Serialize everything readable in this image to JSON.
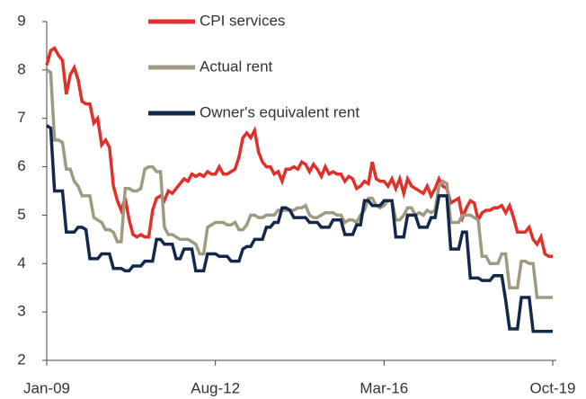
{
  "chart_data": {
    "type": "line",
    "categories": [
      "Jan-09",
      null,
      null,
      null,
      null,
      null,
      null,
      null,
      null,
      null,
      null,
      null,
      null,
      null,
      null,
      null,
      null,
      null,
      null,
      null,
      null,
      null,
      null,
      null,
      null,
      null,
      null,
      null,
      null,
      null,
      null,
      null,
      null,
      null,
      null,
      null,
      null,
      null,
      null,
      null,
      null,
      null,
      null,
      "Aug-12",
      null,
      null,
      null,
      null,
      null,
      null,
      null,
      null,
      null,
      null,
      null,
      null,
      null,
      null,
      null,
      null,
      null,
      null,
      null,
      null,
      null,
      null,
      null,
      null,
      null,
      null,
      null,
      null,
      null,
      null,
      null,
      null,
      null,
      null,
      null,
      null,
      null,
      null,
      null,
      null,
      null,
      null,
      "Mar-16",
      null,
      null,
      null,
      null,
      null,
      null,
      null,
      null,
      null,
      null,
      null,
      null,
      null,
      null,
      null,
      null,
      null,
      null,
      null,
      null,
      null,
      null,
      null,
      null,
      null,
      null,
      null,
      null,
      null,
      null,
      null,
      null,
      null,
      null,
      null,
      null,
      null,
      null,
      null,
      null,
      null,
      null,
      "Oct-19"
    ],
    "series": [
      {
        "name": "CPI services",
        "color": "#e0302a",
        "values": [
          8.1,
          8.4,
          8.45,
          8.3,
          8.2,
          7.5,
          7.9,
          8.05,
          7.8,
          7.35,
          7.3,
          7.3,
          6.9,
          7.0,
          6.45,
          6.55,
          6.4,
          5.6,
          5.3,
          5.1,
          5.35,
          4.9,
          4.6,
          4.55,
          4.6,
          4.55,
          4.55,
          5.1,
          5.35,
          5.4,
          5.3,
          5.5,
          5.45,
          5.55,
          5.65,
          5.75,
          5.7,
          5.85,
          5.8,
          5.85,
          5.8,
          5.9,
          5.85,
          5.85,
          6.0,
          5.85,
          5.85,
          5.9,
          5.95,
          6.2,
          6.6,
          6.7,
          6.6,
          6.75,
          6.3,
          6.1,
          6.0,
          6.0,
          5.85,
          5.9,
          5.7,
          5.95,
          5.95,
          6.0,
          5.95,
          6.1,
          6.05,
          5.9,
          6.05,
          5.95,
          5.8,
          6.0,
          5.85,
          5.9,
          5.85,
          5.85,
          5.7,
          5.8,
          5.75,
          5.55,
          5.6,
          5.7,
          5.65,
          6.1,
          5.75,
          5.7,
          5.7,
          5.6,
          5.75,
          5.55,
          5.75,
          5.45,
          5.75,
          5.6,
          5.55,
          5.5,
          5.45,
          5.6,
          5.4,
          5.55,
          5.75,
          5.6,
          5.55,
          5.25,
          5.3,
          5.35,
          4.95,
          5.15,
          5.3,
          5.25,
          4.9,
          5.05,
          5.1,
          5.1,
          5.15,
          5.15,
          5.2,
          5.05,
          5.2,
          4.95,
          4.65,
          4.65,
          4.65,
          4.75,
          4.5,
          4.4,
          4.55,
          4.2,
          4.15,
          4.15
        ]
      },
      {
        "name": "Actual rent",
        "color": "#a09a80",
        "values": [
          8.0,
          7.95,
          6.55,
          6.55,
          6.5,
          5.95,
          5.95,
          5.7,
          5.6,
          5.4,
          5.4,
          5.4,
          4.95,
          4.9,
          4.85,
          4.7,
          4.7,
          4.65,
          4.45,
          4.45,
          5.55,
          5.55,
          5.5,
          5.5,
          5.55,
          5.95,
          6.0,
          6.0,
          5.9,
          5.9,
          4.75,
          4.6,
          4.6,
          4.55,
          4.5,
          4.5,
          4.5,
          4.45,
          4.4,
          4.2,
          4.2,
          4.75,
          4.8,
          4.85,
          4.85,
          4.85,
          4.8,
          4.8,
          4.85,
          4.7,
          4.7,
          4.8,
          5.0,
          5.0,
          4.95,
          4.95,
          5.0,
          5.0,
          5.0,
          5.1,
          5.1,
          5.1,
          5.1,
          5.1,
          5.15,
          5.15,
          5.2,
          5.0,
          4.95,
          4.95,
          5.0,
          5.05,
          5.05,
          5.05,
          5.0,
          5.0,
          4.85,
          4.9,
          4.9,
          4.85,
          5.0,
          5.1,
          5.35,
          5.35,
          5.2,
          5.15,
          5.2,
          5.3,
          5.3,
          4.9,
          4.9,
          5.0,
          5.15,
          5.15,
          5.0,
          5.05,
          5.0,
          5.1,
          5.05,
          5.1,
          5.6,
          5.7,
          5.65,
          4.85,
          4.85,
          4.85,
          5.0,
          5.0,
          5.0,
          4.95,
          4.9,
          4.15,
          4.15,
          4.0,
          4.0,
          4.0,
          4.2,
          4.2,
          3.5,
          3.5,
          3.5,
          4.05,
          4.05,
          4.0,
          4.0,
          3.3,
          3.3,
          3.3,
          3.3,
          3.3
        ]
      },
      {
        "name": "Owner's equivalent rent",
        "color": "#13294b",
        "values": [
          6.85,
          6.8,
          5.5,
          5.5,
          5.5,
          4.65,
          4.65,
          4.65,
          4.75,
          4.75,
          4.7,
          4.1,
          4.1,
          4.1,
          4.2,
          4.2,
          4.2,
          3.9,
          3.9,
          3.9,
          3.85,
          3.85,
          3.95,
          3.95,
          3.95,
          4.05,
          4.05,
          4.05,
          4.5,
          4.5,
          4.4,
          4.4,
          4.4,
          4.1,
          4.1,
          4.3,
          4.3,
          4.3,
          3.85,
          3.85,
          3.85,
          4.2,
          4.2,
          4.2,
          4.15,
          4.15,
          4.15,
          4.05,
          4.05,
          4.05,
          4.3,
          4.35,
          4.35,
          4.5,
          4.5,
          4.5,
          4.75,
          4.75,
          4.85,
          4.85,
          5.15,
          5.15,
          5.1,
          4.95,
          4.95,
          4.95,
          4.95,
          4.85,
          4.85,
          4.85,
          4.75,
          4.75,
          4.75,
          4.9,
          4.9,
          4.9,
          4.6,
          4.6,
          4.6,
          4.8,
          4.8,
          5.3,
          5.3,
          5.2,
          5.2,
          5.2,
          5.3,
          5.3,
          5.3,
          4.55,
          4.55,
          4.55,
          5.0,
          5.0,
          5.0,
          4.75,
          4.75,
          4.75,
          4.95,
          4.95,
          5.4,
          5.4,
          5.4,
          4.3,
          4.3,
          4.3,
          4.65,
          4.65,
          3.7,
          3.7,
          3.7,
          3.65,
          3.65,
          3.65,
          3.75,
          3.75,
          3.75,
          3.25,
          2.65,
          2.65,
          2.65,
          3.3,
          3.3,
          3.3,
          2.6,
          2.6,
          2.6,
          2.6,
          2.6,
          2.6
        ]
      }
    ],
    "ylim": [
      2,
      9
    ],
    "yticks": [
      2,
      3,
      4,
      5,
      6,
      7,
      8,
      9
    ]
  }
}
